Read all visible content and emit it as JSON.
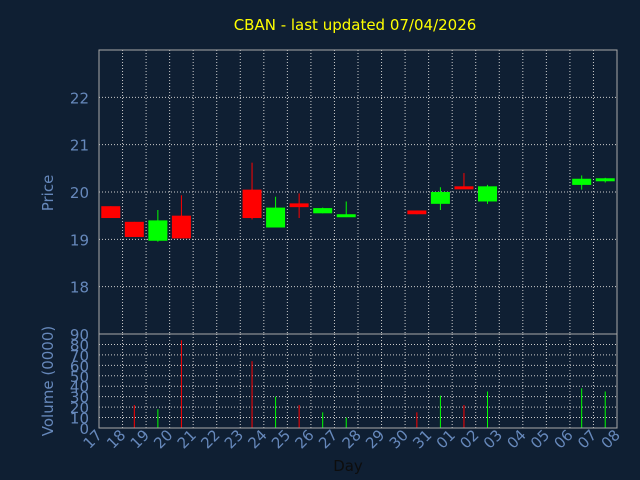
{
  "chart_data": {
    "type": "candlestick",
    "title": "CBAN - last updated 07/04/2026",
    "xlabel": "Day",
    "ylabel": "Price",
    "volume_label": "Volume (0000)",
    "grid": true,
    "ylim": [
      17,
      23
    ],
    "y_ticks": [
      18,
      19,
      20,
      21,
      22
    ],
    "volume_ylim": [
      0,
      90
    ],
    "volume_ticks": [
      0,
      10,
      20,
      30,
      40,
      50,
      60,
      70,
      80,
      90
    ],
    "x_ticks": [
      "17",
      "18",
      "19",
      "20",
      "21",
      "22",
      "23",
      "24",
      "25",
      "26",
      "27",
      "28",
      "29",
      "30",
      "31",
      "01",
      "02",
      "03",
      "04",
      "05",
      "06",
      "07",
      "08"
    ],
    "colors": {
      "background": "#0f1f33",
      "up": "#00ff00",
      "down": "#ff0000",
      "axis": "#aaaaaa",
      "tick_label": "#6688bb",
      "title": "#ffff00",
      "axis_label": "#6688bb",
      "grid": "#cccccc"
    },
    "candles": [
      {
        "x": 0,
        "open": 19.7,
        "high": 19.7,
        "low": 19.45,
        "close": 19.45,
        "volume": 0
      },
      {
        "x": 1,
        "open": 19.37,
        "high": 19.37,
        "low": 19.05,
        "close": 19.05,
        "volume": 22
      },
      {
        "x": 2,
        "open": 18.97,
        "high": 19.62,
        "low": 18.95,
        "close": 19.4,
        "volume": 18
      },
      {
        "x": 3,
        "open": 19.5,
        "high": 19.93,
        "low": 19.02,
        "close": 19.02,
        "volume": 84
      },
      {
        "x": 6,
        "open": 20.05,
        "high": 20.62,
        "low": 19.42,
        "close": 19.45,
        "volume": 64
      },
      {
        "x": 7,
        "open": 19.25,
        "high": 19.9,
        "low": 19.25,
        "close": 19.67,
        "volume": 30
      },
      {
        "x": 8,
        "open": 19.76,
        "high": 19.97,
        "low": 19.45,
        "close": 19.68,
        "volume": 22
      },
      {
        "x": 9,
        "open": 19.55,
        "high": 19.67,
        "low": 19.55,
        "close": 19.66,
        "volume": 15
      },
      {
        "x": 10,
        "open": 19.48,
        "high": 19.8,
        "low": 19.47,
        "close": 19.53,
        "volume": 10
      },
      {
        "x": 13,
        "open": 19.61,
        "high": 19.61,
        "low": 19.53,
        "close": 19.53,
        "volume": 15
      },
      {
        "x": 14,
        "open": 19.75,
        "high": 20.1,
        "low": 19.62,
        "close": 20.0,
        "volume": 31
      },
      {
        "x": 15,
        "open": 20.12,
        "high": 20.4,
        "low": 20.07,
        "close": 20.08,
        "volume": 22
      },
      {
        "x": 16,
        "open": 19.8,
        "high": 20.15,
        "low": 19.75,
        "close": 20.12,
        "volume": 35
      },
      {
        "x": 20,
        "open": 20.15,
        "high": 20.35,
        "low": 20.05,
        "close": 20.28,
        "volume": 38
      },
      {
        "x": 21,
        "open": 20.23,
        "high": 20.3,
        "low": 20.2,
        "close": 20.29,
        "volume": 35
      }
    ]
  }
}
